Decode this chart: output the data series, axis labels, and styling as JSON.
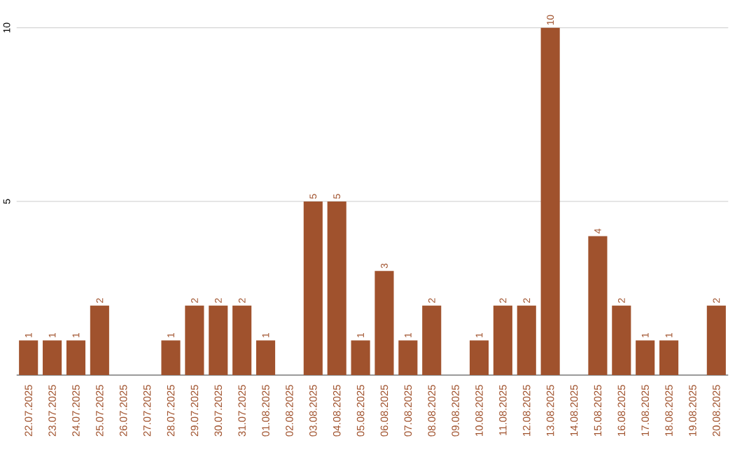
{
  "chart_data": {
    "type": "bar",
    "categories": [
      "22.07.2025",
      "23.07.2025",
      "24.07.2025",
      "25.07.2025",
      "26.07.2025",
      "27.07.2025",
      "28.07.2025",
      "29.07.2025",
      "30.07.2025",
      "31.07.2025",
      "01.08.2025",
      "02.08.2025",
      "03.08.2025",
      "04.08.2025",
      "05.08.2025",
      "06.08.2025",
      "07.08.2025",
      "08.08.2025",
      "09.08.2025",
      "10.08.2025",
      "11.08.2025",
      "12.08.2025",
      "13.08.2025",
      "14.08.2025",
      "15.08.2025",
      "16.08.2025",
      "17.08.2025",
      "18.08.2025",
      "19.08.2025",
      "20.08.2025"
    ],
    "values": [
      1,
      1,
      1,
      2,
      0,
      0,
      1,
      2,
      2,
      2,
      1,
      0,
      5,
      5,
      1,
      3,
      1,
      2,
      0,
      1,
      2,
      2,
      10,
      0,
      4,
      2,
      1,
      1,
      0,
      2
    ],
    "value_labels": [
      "1",
      "1",
      "1",
      "2",
      null,
      null,
      "1",
      "2",
      "2",
      "2",
      "1",
      null,
      "5",
      "5",
      "1",
      "3",
      "1",
      "2",
      null,
      "1",
      "2",
      "2",
      "10",
      null,
      "4",
      "2",
      "1",
      "1",
      null,
      "2"
    ],
    "color": "#a0522d",
    "ylim": [
      0,
      10
    ],
    "yticks": [
      5,
      10
    ],
    "grid": "y"
  }
}
